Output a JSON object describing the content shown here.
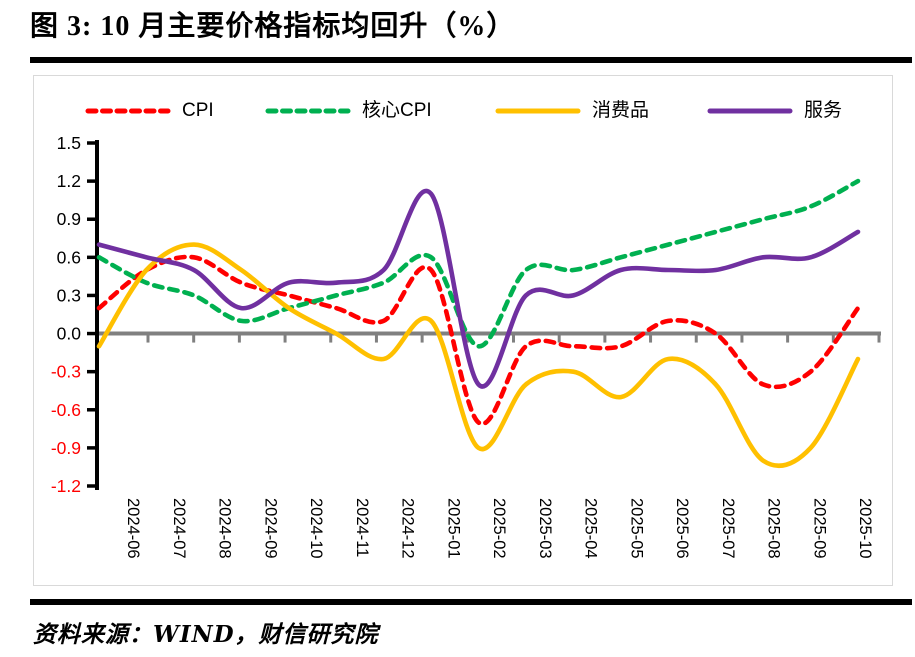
{
  "title": "图 3:  10 月主要价格指标均回升（%）",
  "source": "资料来源：WIND，财信研究院",
  "colors": {
    "cpi": "#FF0000",
    "core_cpi": "#00B050",
    "consumer_goods": "#FFC000",
    "services": "#7030A0",
    "zero_line": "#808080",
    "axis": "#000000",
    "negative_tick_label": "#FF0000",
    "positive_tick_label": "#000000",
    "panel_border": "#D9D9D9"
  },
  "chart_data": {
    "type": "line",
    "title": "10 月主要价格指标均回升（%）",
    "x": [
      "2024-06",
      "2024-07",
      "2024-08",
      "2024-09",
      "2024-10",
      "2024-11",
      "2024-12",
      "2025-01",
      "2025-02",
      "2025-03",
      "2025-04",
      "2025-05",
      "2025-06",
      "2025-07",
      "2025-08",
      "2025-09",
      "2025-10"
    ],
    "series": [
      {
        "name": "CPI",
        "color": "#FF0000",
        "style": "dashed",
        "values": [
          0.2,
          0.5,
          0.6,
          0.4,
          0.3,
          0.2,
          0.1,
          0.5,
          -0.7,
          -0.1,
          -0.1,
          -0.1,
          0.1,
          0.0,
          -0.4,
          -0.3,
          0.2
        ]
      },
      {
        "name": "核心CPI",
        "color": "#00B050",
        "style": "dashed",
        "values": [
          0.6,
          0.4,
          0.3,
          0.1,
          0.2,
          0.3,
          0.4,
          0.6,
          -0.1,
          0.5,
          0.5,
          0.6,
          0.7,
          0.8,
          0.9,
          1.0,
          1.2
        ]
      },
      {
        "name": "消费品",
        "color": "#FFC000",
        "style": "solid",
        "values": [
          -0.1,
          0.5,
          0.7,
          0.5,
          0.2,
          0.0,
          -0.2,
          0.1,
          -0.9,
          -0.4,
          -0.3,
          -0.5,
          -0.2,
          -0.4,
          -1.0,
          -0.9,
          -0.2
        ]
      },
      {
        "name": "服务",
        "color": "#7030A0",
        "style": "solid",
        "values": [
          0.7,
          0.6,
          0.5,
          0.2,
          0.4,
          0.4,
          0.5,
          1.1,
          -0.4,
          0.3,
          0.3,
          0.5,
          0.5,
          0.5,
          0.6,
          0.6,
          0.8
        ]
      }
    ],
    "ylim": [
      -1.2,
      1.5
    ],
    "ytick_step": 0.3,
    "yticks": [
      1.5,
      1.2,
      0.9,
      0.6,
      0.3,
      0.0,
      -0.3,
      -0.6,
      -0.9,
      -1.2
    ],
    "xlabel": "",
    "ylabel": "",
    "grid": false,
    "smooth": true,
    "legend_position": "top"
  }
}
